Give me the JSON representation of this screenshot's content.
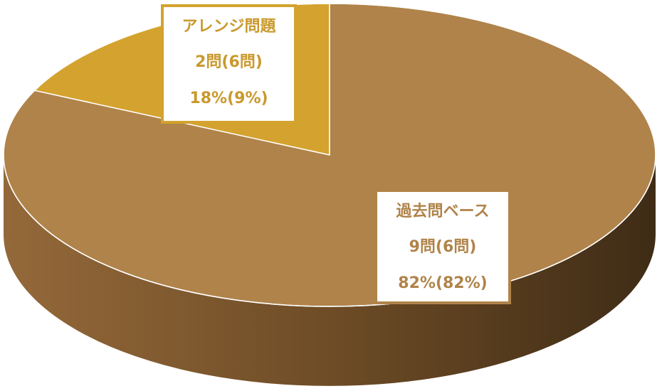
{
  "chart_data": {
    "type": "pie3d",
    "categories": [
      "アレンジ問題",
      "過去問ベース"
    ],
    "values": [
      18,
      82
    ],
    "value_labels": [
      "18%(9%)",
      "82%(82%)"
    ],
    "count_labels": [
      "2問(6問)",
      "9問(6問)"
    ],
    "colors": [
      "#d4a22e",
      "#b0834a"
    ],
    "label_colors": [
      "#c9992c",
      "#b0834a"
    ]
  }
}
